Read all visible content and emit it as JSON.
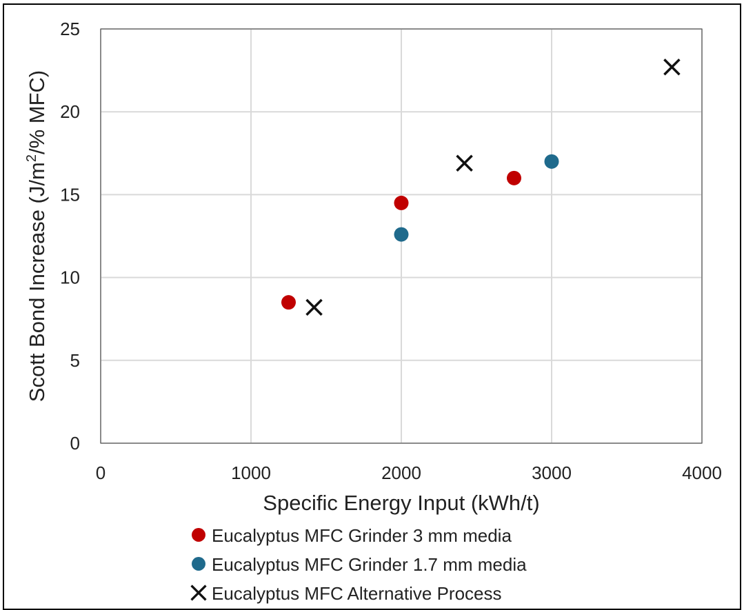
{
  "chart_data": {
    "type": "scatter",
    "title": "",
    "xlabel": "Specific Energy Input (kWh/t)",
    "ylabel": "Scott Bond Increase  (J/m²/% MFC)",
    "xlim": [
      0,
      4000
    ],
    "ylim": [
      0,
      25
    ],
    "xticks": [
      "0",
      "1000",
      "2000",
      "3000",
      "4000"
    ],
    "yticks": [
      "0",
      "5",
      "10",
      "15",
      "20",
      "25"
    ],
    "grid": true,
    "legend_position": "bottom",
    "series": [
      {
        "name": "Eucalyptus MFC Grinder 3 mm media",
        "marker": "circle",
        "color": "#c00000",
        "x": [
          1250,
          2000,
          2750
        ],
        "y": [
          8.5,
          14.5,
          16.0
        ]
      },
      {
        "name": "Eucalyptus MFC Grinder 1.7 mm media",
        "marker": "circle",
        "color": "#1f6a8c",
        "x": [
          2000,
          3000
        ],
        "y": [
          12.6,
          17.0
        ]
      },
      {
        "name": "Eucalyptus MFC Alternative Process",
        "marker": "x",
        "color": "#111111",
        "x": [
          1420,
          2420,
          3800
        ],
        "y": [
          8.2,
          16.9,
          22.7
        ]
      }
    ]
  }
}
